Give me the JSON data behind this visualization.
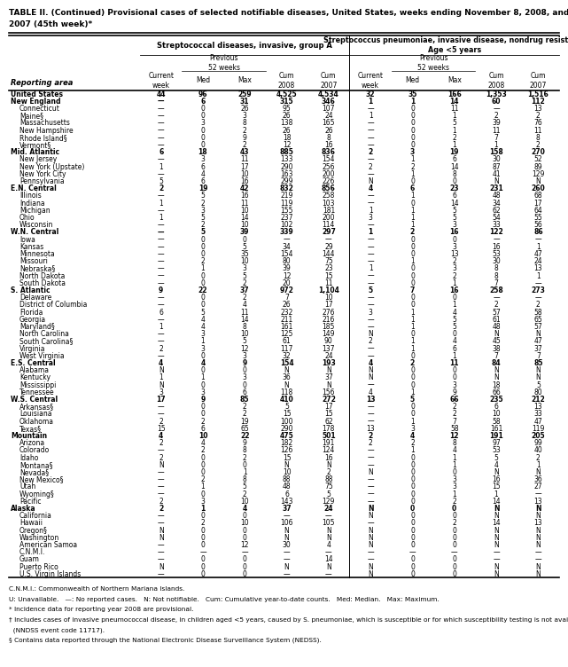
{
  "title_line1": "TABLE II. (Continued) Provisional cases of selected notifiable diseases, United States, weeks ending November 8, 2008, and November 10,",
  "title_line2": "2007 (45th week)*",
  "col_header_1": "Streptococcal diseases, invasive, group A",
  "col_header_2": "Streptococcus pneumoniae, invasive disease, nondrug resistant†\nAge <5 years",
  "col_labels": [
    "Current\nweek",
    "Med",
    "Max",
    "Cum\n2008",
    "Cum\n2007",
    "Current\nweek",
    "Med",
    "Max",
    "Cum\n2008",
    "Cum\n2007"
  ],
  "reporting_area_label": "Reporting area",
  "rows": [
    [
      "United States",
      "44",
      "96",
      "259",
      "4,525",
      "4,534",
      "32",
      "35",
      "166",
      "1,353",
      "1,516"
    ],
    [
      "New England",
      "—",
      "6",
      "31",
      "315",
      "346",
      "1",
      "1",
      "14",
      "60",
      "112"
    ],
    [
      "Connecticut",
      "—",
      "0",
      "26",
      "95",
      "107",
      "—",
      "0",
      "11",
      "—",
      "13"
    ],
    [
      "Maine§",
      "—",
      "0",
      "3",
      "26",
      "24",
      "1",
      "0",
      "1",
      "2",
      "2"
    ],
    [
      "Massachusetts",
      "—",
      "3",
      "8",
      "138",
      "165",
      "—",
      "0",
      "5",
      "39",
      "76"
    ],
    [
      "New Hampshire",
      "—",
      "0",
      "2",
      "26",
      "26",
      "—",
      "0",
      "1",
      "11",
      "11"
    ],
    [
      "Rhode Island§",
      "—",
      "0",
      "9",
      "18",
      "8",
      "—",
      "0",
      "2",
      "7",
      "8"
    ],
    [
      "Vermont§",
      "—",
      "0",
      "2",
      "12",
      "16",
      "—",
      "0",
      "1",
      "1",
      "2"
    ],
    [
      "Mid. Atlantic",
      "6",
      "18",
      "43",
      "885",
      "836",
      "2",
      "3",
      "19",
      "158",
      "270"
    ],
    [
      "New Jersey",
      "—",
      "3",
      "11",
      "133",
      "154",
      "—",
      "1",
      "6",
      "30",
      "52"
    ],
    [
      "New York (Upstate)",
      "1",
      "6",
      "17",
      "290",
      "256",
      "2",
      "2",
      "14",
      "87",
      "89"
    ],
    [
      "New York City",
      "—",
      "4",
      "10",
      "163",
      "200",
      "—",
      "1",
      "8",
      "41",
      "129"
    ],
    [
      "Pennsylvania",
      "5",
      "6",
      "16",
      "299",
      "226",
      "N",
      "0",
      "0",
      "N",
      "N"
    ],
    [
      "E.N. Central",
      "2",
      "19",
      "42",
      "832",
      "856",
      "4",
      "6",
      "23",
      "231",
      "260"
    ],
    [
      "Illinois",
      "—",
      "5",
      "16",
      "219",
      "258",
      "—",
      "1",
      "6",
      "48",
      "68"
    ],
    [
      "Indiana",
      "1",
      "2",
      "11",
      "119",
      "103",
      "—",
      "0",
      "14",
      "34",
      "17"
    ],
    [
      "Michigan",
      "—",
      "3",
      "10",
      "155",
      "181",
      "1",
      "1",
      "5",
      "62",
      "64"
    ],
    [
      "Ohio",
      "1",
      "5",
      "14",
      "237",
      "200",
      "3",
      "1",
      "5",
      "54",
      "55"
    ],
    [
      "Wisconsin",
      "—",
      "2",
      "10",
      "102",
      "114",
      "—",
      "1",
      "3",
      "33",
      "56"
    ],
    [
      "W.N. Central",
      "—",
      "5",
      "39",
      "339",
      "297",
      "1",
      "2",
      "16",
      "122",
      "86"
    ],
    [
      "Iowa",
      "—",
      "0",
      "0",
      "—",
      "—",
      "—",
      "0",
      "0",
      "—",
      "—"
    ],
    [
      "Kansas",
      "—",
      "0",
      "5",
      "34",
      "29",
      "—",
      "0",
      "3",
      "16",
      "1"
    ],
    [
      "Minnesota",
      "—",
      "0",
      "35",
      "154",
      "144",
      "—",
      "0",
      "13",
      "53",
      "47"
    ],
    [
      "Missouri",
      "—",
      "2",
      "10",
      "80",
      "75",
      "—",
      "1",
      "2",
      "30",
      "24"
    ],
    [
      "Nebraska§",
      "—",
      "1",
      "3",
      "39",
      "23",
      "1",
      "0",
      "3",
      "8",
      "13"
    ],
    [
      "North Dakota",
      "—",
      "0",
      "5",
      "12",
      "15",
      "—",
      "0",
      "2",
      "8",
      "1"
    ],
    [
      "South Dakota",
      "—",
      "0",
      "2",
      "20",
      "11",
      "—",
      "0",
      "1",
      "7",
      "—"
    ],
    [
      "S. Atlantic",
      "9",
      "22",
      "37",
      "972",
      "1,104",
      "5",
      "7",
      "16",
      "258",
      "273"
    ],
    [
      "Delaware",
      "—",
      "0",
      "2",
      "7",
      "10",
      "—",
      "0",
      "0",
      "—",
      "—"
    ],
    [
      "District of Columbia",
      "—",
      "0",
      "4",
      "26",
      "17",
      "—",
      "0",
      "1",
      "2",
      "2"
    ],
    [
      "Florida",
      "6",
      "5",
      "11",
      "232",
      "276",
      "3",
      "1",
      "4",
      "57",
      "58"
    ],
    [
      "Georgia",
      "—",
      "4",
      "14",
      "211",
      "216",
      "—",
      "1",
      "5",
      "61",
      "65"
    ],
    [
      "Maryland§",
      "1",
      "4",
      "8",
      "161",
      "185",
      "—",
      "1",
      "5",
      "48",
      "57"
    ],
    [
      "North Carolina",
      "—",
      "3",
      "10",
      "125",
      "149",
      "N",
      "0",
      "0",
      "N",
      "N"
    ],
    [
      "South Carolina§",
      "—",
      "1",
      "5",
      "61",
      "90",
      "2",
      "1",
      "4",
      "45",
      "47"
    ],
    [
      "Virginia",
      "2",
      "3",
      "12",
      "117",
      "137",
      "—",
      "1",
      "6",
      "38",
      "37"
    ],
    [
      "West Virginia",
      "—",
      "0",
      "3",
      "32",
      "24",
      "—",
      "0",
      "1",
      "7",
      "7"
    ],
    [
      "E.S. Central",
      "4",
      "4",
      "9",
      "154",
      "193",
      "4",
      "2",
      "11",
      "84",
      "85"
    ],
    [
      "Alabama",
      "N",
      "0",
      "0",
      "N",
      "N",
      "N",
      "0",
      "0",
      "N",
      "N"
    ],
    [
      "Kentucky",
      "1",
      "1",
      "3",
      "36",
      "37",
      "N",
      "0",
      "0",
      "N",
      "N"
    ],
    [
      "Mississippi",
      "N",
      "0",
      "0",
      "N",
      "N",
      "—",
      "0",
      "3",
      "18",
      "5"
    ],
    [
      "Tennessee",
      "3",
      "3",
      "6",
      "118",
      "156",
      "4",
      "1",
      "9",
      "66",
      "80"
    ],
    [
      "W.S. Central",
      "17",
      "9",
      "85",
      "410",
      "272",
      "13",
      "5",
      "66",
      "235",
      "212"
    ],
    [
      "Arkansas§",
      "—",
      "0",
      "2",
      "5",
      "17",
      "—",
      "0",
      "2",
      "6",
      "13"
    ],
    [
      "Louisiana",
      "—",
      "0",
      "2",
      "15",
      "15",
      "—",
      "0",
      "2",
      "10",
      "33"
    ],
    [
      "Oklahoma",
      "2",
      "2",
      "19",
      "100",
      "62",
      "—",
      "1",
      "7",
      "58",
      "47"
    ],
    [
      "Texas§",
      "15",
      "6",
      "65",
      "290",
      "178",
      "13",
      "3",
      "58",
      "161",
      "119"
    ],
    [
      "Mountain",
      "4",
      "10",
      "22",
      "475",
      "501",
      "2",
      "4",
      "12",
      "191",
      "205"
    ],
    [
      "Arizona",
      "2",
      "4",
      "9",
      "182",
      "191",
      "2",
      "2",
      "8",
      "97",
      "99"
    ],
    [
      "Colorado",
      "—",
      "2",
      "8",
      "126",
      "124",
      "—",
      "1",
      "4",
      "53",
      "40"
    ],
    [
      "Idaho",
      "2",
      "0",
      "2",
      "15",
      "16",
      "—",
      "0",
      "1",
      "5",
      "2"
    ],
    [
      "Montana§",
      "N",
      "0",
      "0",
      "N",
      "N",
      "—",
      "0",
      "1",
      "4",
      "1"
    ],
    [
      "Nevada§",
      "—",
      "0",
      "1",
      "10",
      "2",
      "N",
      "0",
      "0",
      "N",
      "N"
    ],
    [
      "New Mexico§",
      "—",
      "2",
      "8",
      "88",
      "88",
      "—",
      "0",
      "3",
      "16",
      "36"
    ],
    [
      "Utah",
      "—",
      "1",
      "5",
      "48",
      "75",
      "—",
      "0",
      "3",
      "15",
      "27"
    ],
    [
      "Wyoming§",
      "—",
      "0",
      "2",
      "6",
      "5",
      "—",
      "0",
      "1",
      "1",
      "—"
    ],
    [
      "Pacific",
      "2",
      "3",
      "10",
      "143",
      "129",
      "—",
      "0",
      "2",
      "14",
      "13"
    ],
    [
      "Alaska",
      "2",
      "1",
      "4",
      "37",
      "24",
      "N",
      "0",
      "0",
      "N",
      "N"
    ],
    [
      "California",
      "—",
      "0",
      "0",
      "—",
      "—",
      "N",
      "0",
      "0",
      "N",
      "N"
    ],
    [
      "Hawaii",
      "—",
      "2",
      "10",
      "106",
      "105",
      "—",
      "0",
      "2",
      "14",
      "13"
    ],
    [
      "Oregon§",
      "N",
      "0",
      "0",
      "N",
      "N",
      "N",
      "0",
      "0",
      "N",
      "N"
    ],
    [
      "Washington",
      "N",
      "0",
      "0",
      "N",
      "N",
      "N",
      "0",
      "0",
      "N",
      "N"
    ],
    [
      "American Samoa",
      "—",
      "0",
      "12",
      "30",
      "4",
      "N",
      "0",
      "0",
      "N",
      "N"
    ],
    [
      "C.N.M.I.",
      "—",
      "—",
      "—",
      "—",
      "—",
      "—",
      "—",
      "—",
      "—",
      "—"
    ],
    [
      "Guam",
      "—",
      "0",
      "0",
      "—",
      "14",
      "—",
      "0",
      "0",
      "—",
      "—"
    ],
    [
      "Puerto Rico",
      "N",
      "0",
      "0",
      "N",
      "N",
      "N",
      "0",
      "0",
      "N",
      "N"
    ],
    [
      "U.S. Virgin Islands",
      "—",
      "0",
      "0",
      "—",
      "—",
      "N",
      "0",
      "0",
      "N",
      "N"
    ]
  ],
  "bold_rows": [
    0,
    1,
    8,
    13,
    19,
    27,
    37,
    42,
    47,
    57
  ],
  "footnotes": [
    "C.N.M.I.: Commonwealth of Northern Mariana Islands.",
    "U: Unavailable.   —: No reported cases.   N: Not notifiable.   Cum: Cumulative year-to-date counts.   Med: Median.   Max: Maximum.",
    "* Incidence data for reporting year 2008 are provisional.",
    "† Includes cases of invasive pneumococcal disease, in children aged <5 years, caused by S. pneumoniae, which is susceptible or for which susceptibility testing is not available",
    "  (NNDSS event code 11717).",
    "§ Contains data reported through the National Electronic Disease Surveillance System (NEDSS)."
  ]
}
